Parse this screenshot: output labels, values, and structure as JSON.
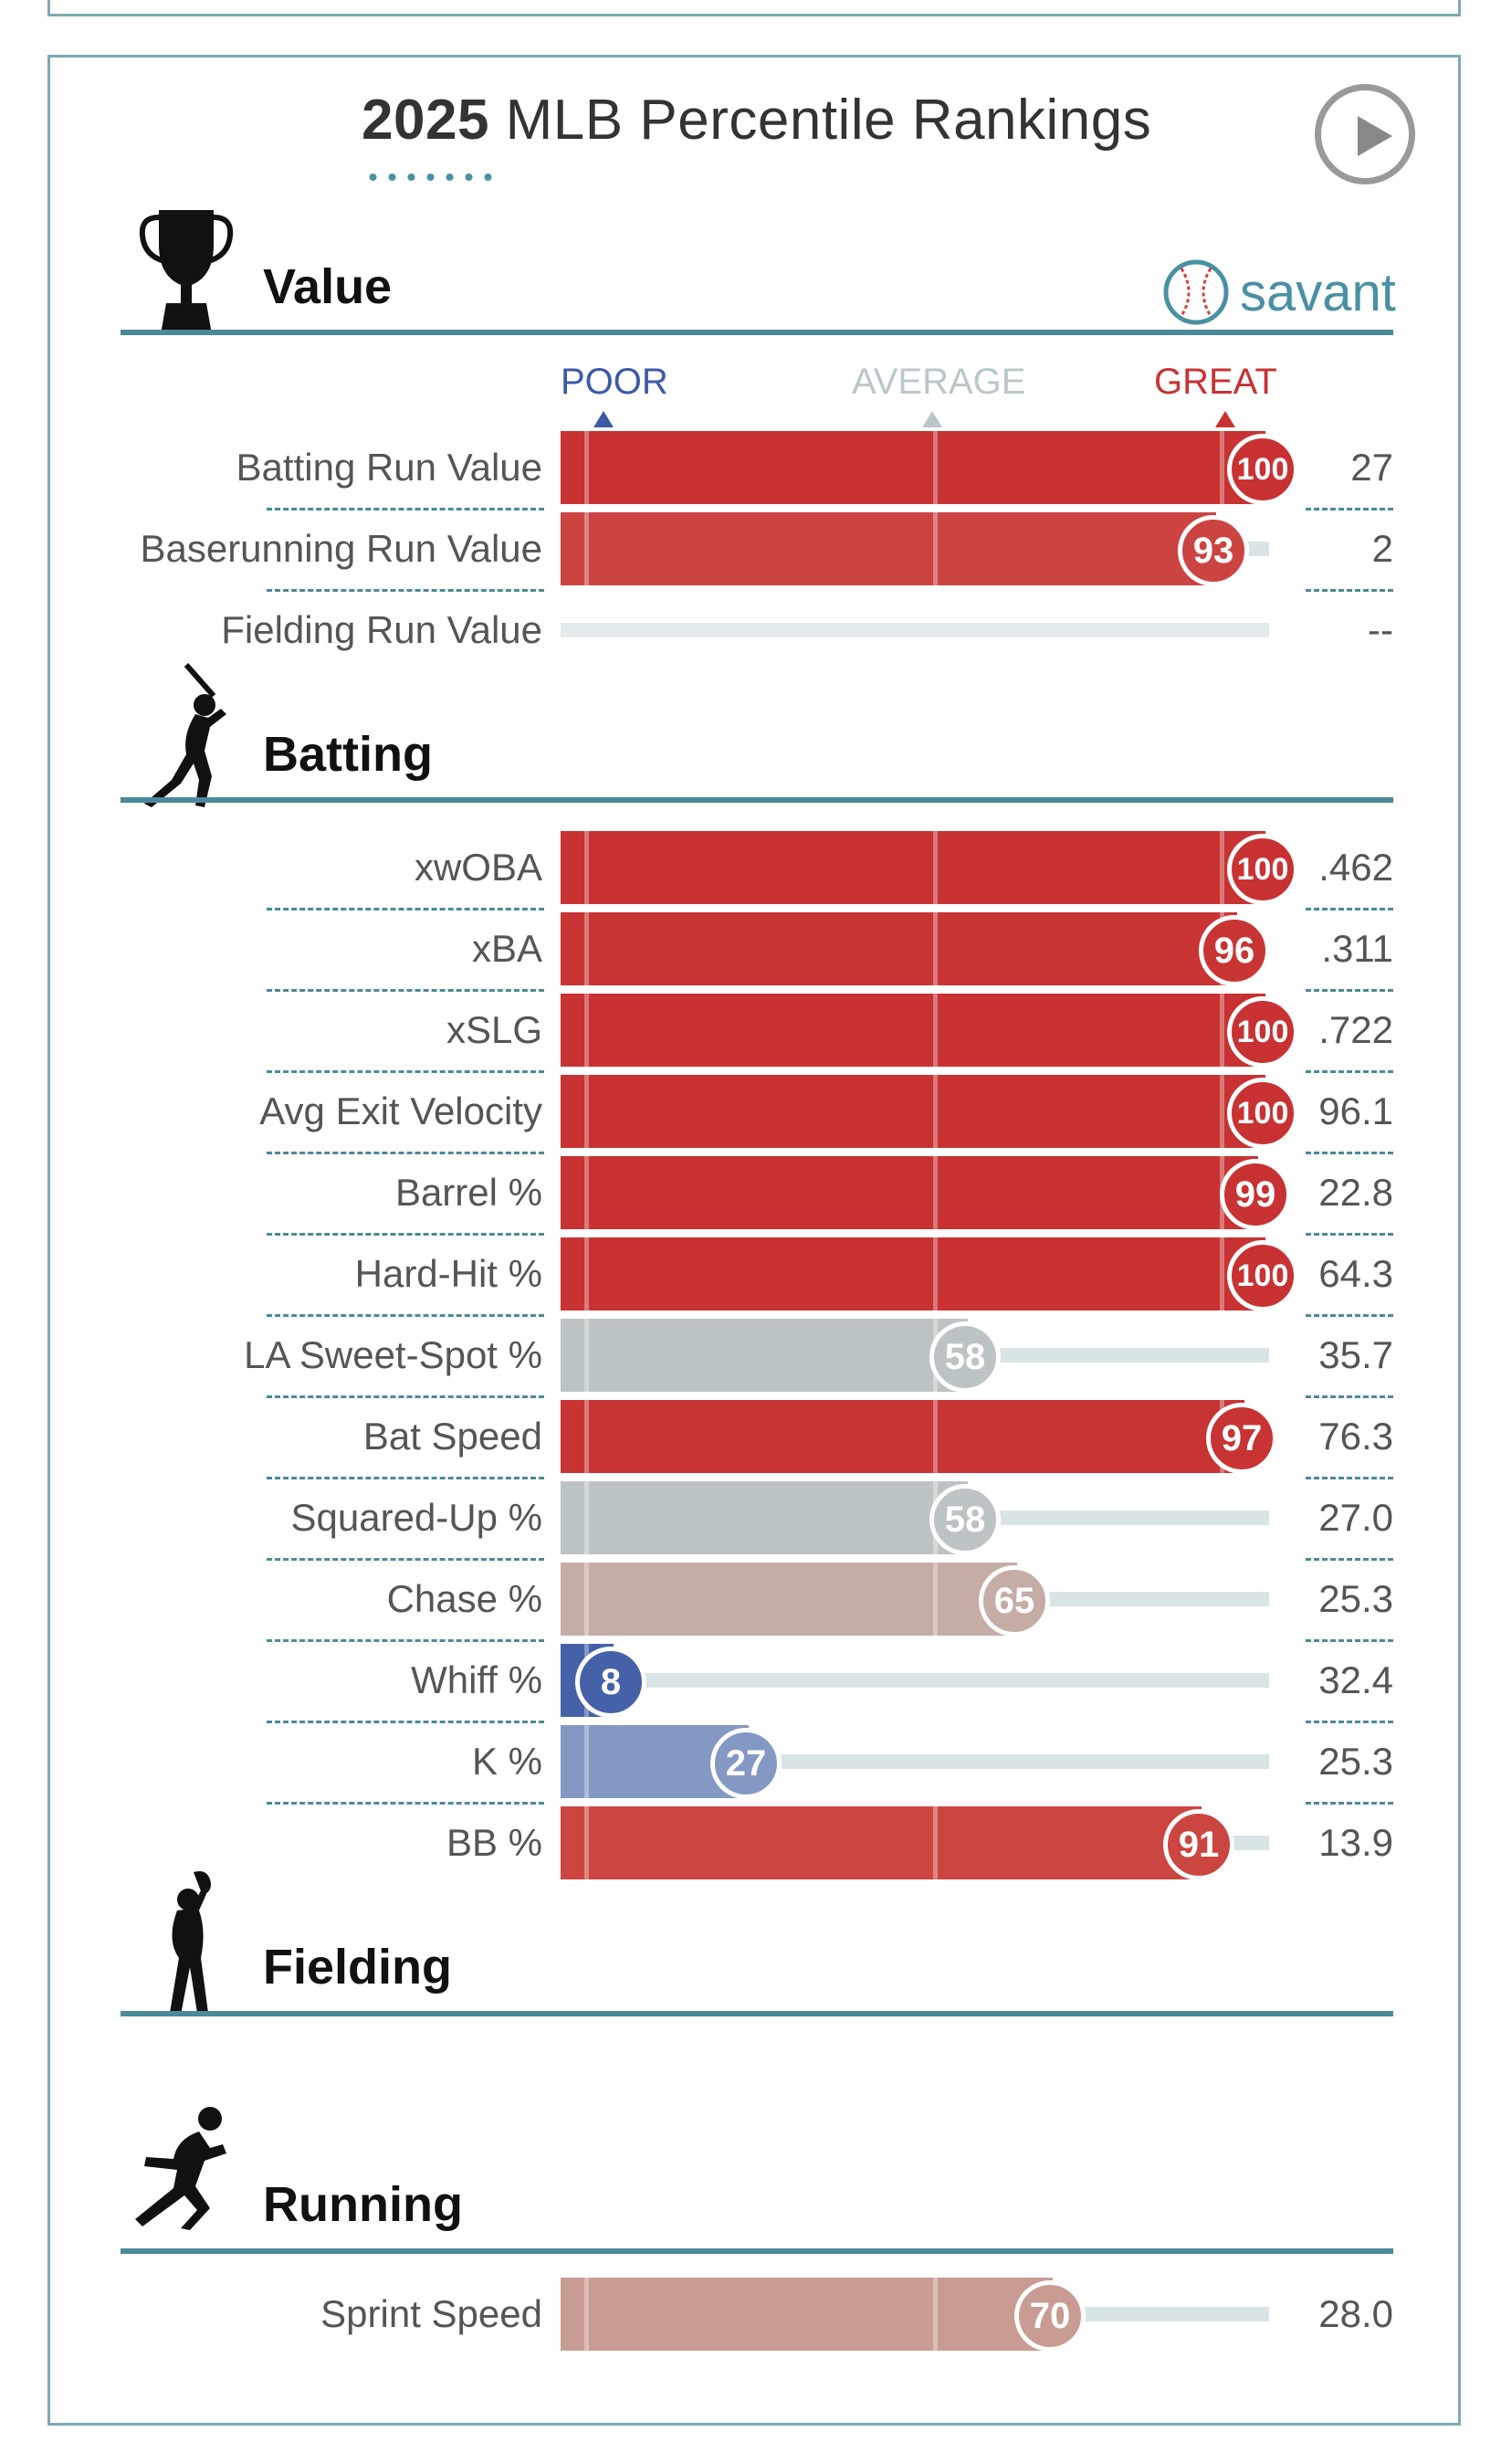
{
  "title": {
    "year": "2025",
    "text": " MLB Percentile Rankings"
  },
  "brand": "savant",
  "scale": {
    "poor": "POOR",
    "average": "AVERAGE",
    "great": "GREAT"
  },
  "colors": {
    "accent": "#4a8a99",
    "great": "#c83232",
    "poor": "#3c5aa6",
    "average": "#b8c0c2"
  },
  "sections": [
    {
      "name": "Value",
      "icon": "trophy-icon",
      "metrics": [
        {
          "label": "Batting Run Value",
          "percentile": 100,
          "value": "27",
          "color": "#c83232"
        },
        {
          "label": "Baserunning Run Value",
          "percentile": 93,
          "value": "2",
          "color": "#cc4441"
        },
        {
          "label": "Fielding Run Value",
          "percentile": null,
          "value": "--",
          "color": "#e3eaec"
        }
      ]
    },
    {
      "name": "Batting",
      "icon": "batter-icon",
      "metrics": [
        {
          "label": "xwOBA",
          "percentile": 100,
          "value": ".462",
          "color": "#c83232"
        },
        {
          "label": "xBA",
          "percentile": 96,
          "value": ".311",
          "color": "#c93535"
        },
        {
          "label": "xSLG",
          "percentile": 100,
          "value": ".722",
          "color": "#c83232"
        },
        {
          "label": "Avg Exit Velocity",
          "percentile": 100,
          "value": "96.1",
          "color": "#c83232"
        },
        {
          "label": "Barrel %",
          "percentile": 99,
          "value": "22.8",
          "color": "#c83232"
        },
        {
          "label": "Hard-Hit %",
          "percentile": 100,
          "value": "64.3",
          "color": "#c83232"
        },
        {
          "label": "LA Sweet-Spot %",
          "percentile": 58,
          "value": "35.7",
          "color": "#bcc3c4"
        },
        {
          "label": "Bat Speed",
          "percentile": 97,
          "value": "76.3",
          "color": "#c83333"
        },
        {
          "label": "Squared-Up %",
          "percentile": 58,
          "value": "27.0",
          "color": "#bcc3c4"
        },
        {
          "label": "Chase %",
          "percentile": 65,
          "value": "25.3",
          "color": "#c6aca6"
        },
        {
          "label": "Whiff %",
          "percentile": 8,
          "value": "32.4",
          "color": "#4561a8"
        },
        {
          "label": "K %",
          "percentile": 27,
          "value": "25.3",
          "color": "#8399c4"
        },
        {
          "label": "BB %",
          "percentile": 91,
          "value": "13.9",
          "color": "#cb4640"
        }
      ]
    },
    {
      "name": "Fielding",
      "icon": "fielder-icon",
      "metrics": []
    },
    {
      "name": "Running",
      "icon": "runner-icon",
      "metrics": [
        {
          "label": "Sprint Speed",
          "percentile": 70,
          "value": "28.0",
          "color": "#c89c92"
        }
      ]
    }
  ]
}
